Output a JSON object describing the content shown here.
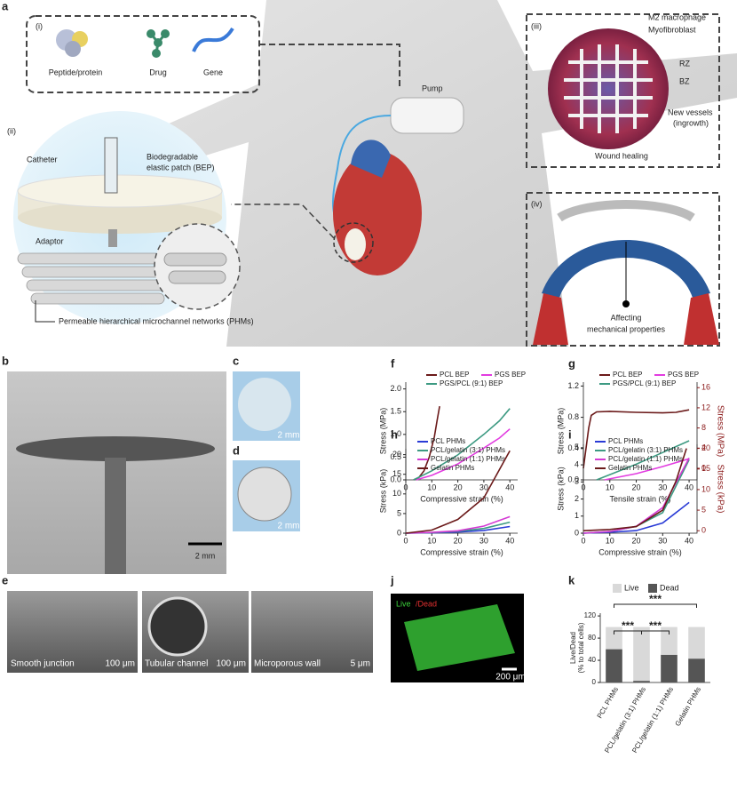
{
  "figure": {
    "panel_labels": [
      "a",
      "b",
      "c",
      "d",
      "e",
      "f",
      "g",
      "h",
      "i",
      "j",
      "k"
    ],
    "a": {
      "subpanels": [
        "(i)",
        "(ii)",
        "(iii)",
        "(iv)"
      ],
      "agents": [
        "Peptide/protein",
        "Drug",
        "Gene"
      ],
      "pump": "Pump",
      "cells": [
        "M2 macrophage",
        "Myofibroblast"
      ],
      "zones": [
        "RZ",
        "BZ"
      ],
      "vessels": [
        "New vessels",
        "(ingrowth)"
      ],
      "wound": "Wound healing",
      "catheter": "Catheter",
      "bep": [
        "Biodegradable",
        "elastic patch (BEP)"
      ],
      "adaptor": "Adaptor",
      "phms": "Permeable hierarchical microchannel networks (PHMs)",
      "mechanics": [
        "Affecting",
        "mechanical properties"
      ]
    },
    "b": {
      "scale": "2 mm"
    },
    "c": {
      "scale": "2 mm"
    },
    "d": {
      "scale": "2 mm"
    },
    "e": {
      "captions": [
        "Smooth junction",
        "Tubular channel",
        "Microporous wall"
      ],
      "scales": [
        "100 μm",
        "100 μm",
        "5 μm"
      ]
    },
    "j": {
      "stain": [
        "Live",
        "/Dead"
      ],
      "scale": "200 μm"
    }
  },
  "chart_data": [
    {
      "type": "line",
      "xlabel": "Compressive strain (%)",
      "ylabel": "Stress (MPa)",
      "xlim": [
        0,
        43
      ],
      "xticks": [
        0,
        10,
        20,
        30,
        40
      ],
      "ylim": [
        0,
        2.15
      ],
      "yticks": [
        {
          "value": 0,
          "label": "0.0"
        },
        0.5,
        {
          "value": 1,
          "label": "1.0"
        },
        1.5,
        {
          "value": 2,
          "label": "2.0"
        }
      ],
      "series": [
        {
          "name": "PCL BEP",
          "color": "#6b1a1a",
          "x": [
            3,
            5,
            7,
            9,
            11,
            12,
            13
          ],
          "values": [
            0,
            0.05,
            0.2,
            0.5,
            0.95,
            1.3,
            1.62
          ]
        },
        {
          "name": "PGS BEP",
          "color": "#e23ce0",
          "x": [
            4,
            10,
            20,
            30,
            36,
            40
          ],
          "values": [
            0,
            0.1,
            0.35,
            0.7,
            0.92,
            1.12
          ]
        },
        {
          "name": "PGS/PCL (9:1) BEP",
          "color": "#3d9a82",
          "x": [
            3,
            10,
            20,
            30,
            36,
            40
          ],
          "values": [
            0,
            0.2,
            0.55,
            1.0,
            1.3,
            1.57
          ]
        }
      ]
    },
    {
      "type": "line",
      "xlabel": "Tensile strain (%)",
      "ylabel": "Stress (MPa)",
      "y2label": "Stress (MPa)",
      "xlim": [
        0,
        43
      ],
      "xticks": [
        0,
        10,
        20,
        30,
        40
      ],
      "ylim": [
        0,
        1.25
      ],
      "yticks": [
        {
          "value": 0,
          "label": "0.0"
        },
        0.4,
        0.8,
        1.2
      ],
      "y2lim": [
        -2.3,
        17.1
      ],
      "y2ticks": [
        0,
        4,
        8,
        12,
        16
      ],
      "y2color": "#8b1a1a",
      "series": [
        {
          "name": "PCL BEP",
          "color": "#6b1a1a",
          "axis": "y2",
          "x": [
            0,
            1,
            2,
            3,
            5,
            10,
            20,
            30,
            35,
            40
          ],
          "values": [
            0,
            4,
            8,
            10.5,
            11.2,
            11.3,
            11.1,
            11.0,
            11.1,
            11.6
          ]
        },
        {
          "name": "PGS BEP",
          "color": "#e23ce0",
          "x": [
            8,
            20,
            30,
            40
          ],
          "values": [
            0,
            0.08,
            0.17,
            0.27
          ]
        },
        {
          "name": "PGS/PCL (9:1) BEP",
          "color": "#3d9a82",
          "x": [
            5,
            20,
            30,
            40
          ],
          "values": [
            0,
            0.2,
            0.35,
            0.5
          ]
        }
      ]
    },
    {
      "type": "line",
      "xlabel": "Compressive strain (%)",
      "ylabel": "Stress (kPa)",
      "xlim": [
        0,
        43
      ],
      "xticks": [
        0,
        10,
        20,
        30,
        40
      ],
      "ylim": [
        0,
        21.5
      ],
      "yticks": [
        0,
        5,
        10,
        15,
        20
      ],
      "series": [
        {
          "name": "PCL PHMs",
          "color": "#2a3bd6",
          "x": [
            0,
            10,
            20,
            30,
            40
          ],
          "values": [
            0,
            0.1,
            0.3,
            0.7,
            1.7
          ]
        },
        {
          "name": "PCL/gelatin (3:1) PHMs",
          "color": "#3d9a82",
          "x": [
            0,
            10,
            20,
            30,
            40
          ],
          "values": [
            0,
            0.15,
            0.5,
            1.2,
            2.8
          ]
        },
        {
          "name": "PCL/gelatin (1:1) PHMs",
          "color": "#d43ad4",
          "x": [
            0,
            10,
            20,
            30,
            40
          ],
          "values": [
            0,
            0.2,
            0.6,
            1.8,
            4.2
          ]
        },
        {
          "name": "Gelatin PHMs",
          "color": "#6b1a1a",
          "x": [
            0,
            10,
            20,
            30,
            40
          ],
          "values": [
            0,
            0.8,
            3.5,
            9,
            21
          ]
        }
      ]
    },
    {
      "type": "line",
      "xlabel": "Compressive strain (%)",
      "ylabel": "Stress (kPa)",
      "y2label": "Stress (kPa)",
      "xlim": [
        0,
        43
      ],
      "xticks": [
        0,
        10,
        20,
        30,
        40
      ],
      "ylim": [
        0,
        5.2
      ],
      "yticks": [
        0,
        1,
        2,
        3,
        4,
        5
      ],
      "y2lim": [
        -0.6,
        21
      ],
      "y2ticks": [
        0,
        5,
        10,
        15,
        20
      ],
      "y2color": "#8b1a1a",
      "series": [
        {
          "name": "PCL PHMs",
          "color": "#2a3bd6",
          "x": [
            0,
            10,
            20,
            30,
            40
          ],
          "values": [
            0,
            0.05,
            0.15,
            0.6,
            1.8
          ]
        },
        {
          "name": "PCL/gelatin (3:1) PHMs",
          "color": "#3d9a82",
          "x": [
            0,
            10,
            20,
            30,
            40
          ],
          "values": [
            0,
            0.1,
            0.4,
            1.2,
            4.3
          ]
        },
        {
          "name": "PCL/gelatin (1:1) PHMs",
          "color": "#d43ad4",
          "x": [
            0,
            10,
            20,
            30,
            40
          ],
          "values": [
            0,
            0.1,
            0.4,
            1.5,
            4.4
          ]
        },
        {
          "name": "Gelatin PHMs",
          "color": "#6b1a1a",
          "axis": "y2",
          "x": [
            0,
            10,
            20,
            30,
            35,
            39
          ],
          "values": [
            0,
            0.3,
            1,
            5,
            12,
            20
          ]
        }
      ]
    },
    {
      "type": "bar",
      "stacked": true,
      "ylabel": [
        "Live/Dead",
        "(% to total cells)"
      ],
      "categories": [
        "PCL PHMs",
        "PCL/gelatin (3:1) PHMs",
        "PCL/gelatin (1:1) PHMs",
        "Gelatin PHMs"
      ],
      "ylim": [
        0,
        125
      ],
      "yticks": [
        0,
        40,
        80,
        120
      ],
      "series": [
        {
          "name": "Live",
          "color": "#d9d9d9",
          "values": [
            40,
            97,
            50,
            57
          ]
        },
        {
          "name": "Dead",
          "color": "#555555",
          "values": [
            60,
            3,
            50,
            43
          ]
        }
      ],
      "annotations": [
        "***",
        "***",
        "***"
      ]
    }
  ]
}
